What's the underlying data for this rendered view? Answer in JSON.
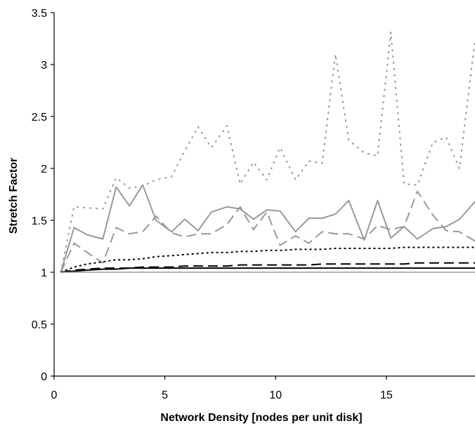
{
  "chart_data": {
    "type": "line",
    "title": "",
    "xlabel": "Network Density [nodes per unit disk]",
    "ylabel": "Stretch Factor",
    "xlim": [
      0,
      19
    ],
    "ylim": [
      0,
      3.5
    ],
    "x_ticks": [
      0,
      5,
      10,
      15
    ],
    "x_tick_labels": [
      "0",
      "5",
      "10",
      "15"
    ],
    "y_ticks": [
      0,
      0.5,
      1,
      1.5,
      2,
      2.5,
      3,
      3.5
    ],
    "y_tick_labels": [
      "0",
      "0.5",
      "1",
      "1.5",
      "2",
      "2.5",
      "3",
      "3.5"
    ],
    "grid": false,
    "legend": "none",
    "x": [
      0.3,
      0.9,
      1.5,
      2.2,
      2.8,
      3.4,
      4.0,
      4.6,
      5.3,
      5.9,
      6.5,
      7.1,
      7.8,
      8.4,
      9.0,
      9.6,
      10.2,
      10.9,
      11.5,
      12.1,
      12.7,
      13.3,
      14.0,
      14.6,
      15.2,
      15.8,
      16.4,
      17.1,
      17.7,
      18.3,
      19.0
    ],
    "series": [
      {
        "color": "#999999",
        "dash": "3,6",
        "width": 2,
        "values": [
          1.0,
          1.63,
          1.62,
          1.61,
          1.91,
          1.81,
          1.83,
          1.89,
          1.92,
          2.17,
          2.4,
          2.2,
          2.41,
          1.85,
          2.06,
          1.89,
          2.2,
          1.89,
          2.07,
          2.05,
          3.1,
          2.27,
          2.15,
          2.12,
          3.31,
          1.85,
          1.84,
          2.25,
          2.3,
          2.0,
          3.24
        ]
      },
      {
        "color": "#999999",
        "dash": "",
        "width": 2,
        "values": [
          1.0,
          1.43,
          1.36,
          1.32,
          1.82,
          1.64,
          1.84,
          1.5,
          1.39,
          1.51,
          1.4,
          1.58,
          1.63,
          1.61,
          1.51,
          1.6,
          1.59,
          1.39,
          1.52,
          1.52,
          1.56,
          1.69,
          1.31,
          1.69,
          1.33,
          1.44,
          1.32,
          1.42,
          1.44,
          1.51,
          1.68
        ]
      },
      {
        "color": "#999999",
        "dash": "14,7",
        "width": 2,
        "values": [
          1.0,
          1.28,
          1.19,
          1.09,
          1.43,
          1.37,
          1.39,
          1.54,
          1.38,
          1.34,
          1.37,
          1.37,
          1.46,
          1.63,
          1.41,
          1.58,
          1.26,
          1.35,
          1.28,
          1.39,
          1.37,
          1.37,
          1.32,
          1.45,
          1.41,
          1.44,
          1.78,
          1.55,
          1.4,
          1.39,
          1.3
        ]
      },
      {
        "color": "#000000",
        "dash": "3,4",
        "width": 2,
        "values": [
          1.0,
          1.05,
          1.08,
          1.1,
          1.12,
          1.12,
          1.13,
          1.15,
          1.16,
          1.17,
          1.18,
          1.19,
          1.19,
          1.2,
          1.2,
          1.21,
          1.21,
          1.22,
          1.22,
          1.22,
          1.23,
          1.23,
          1.23,
          1.23,
          1.23,
          1.24,
          1.24,
          1.24,
          1.24,
          1.24,
          1.24
        ]
      },
      {
        "color": "#000000",
        "dash": "14,7",
        "width": 2,
        "values": [
          1.0,
          1.02,
          1.03,
          1.04,
          1.04,
          1.04,
          1.05,
          1.05,
          1.05,
          1.06,
          1.06,
          1.06,
          1.06,
          1.07,
          1.07,
          1.07,
          1.07,
          1.07,
          1.07,
          1.08,
          1.08,
          1.08,
          1.08,
          1.08,
          1.08,
          1.08,
          1.09,
          1.09,
          1.09,
          1.09,
          1.09
        ]
      },
      {
        "color": "#000000",
        "dash": "",
        "width": 2,
        "values": [
          1.0,
          1.01,
          1.02,
          1.03,
          1.03,
          1.04,
          1.04,
          1.04,
          1.04,
          1.04,
          1.04,
          1.04,
          1.04,
          1.04,
          1.04,
          1.04,
          1.04,
          1.04,
          1.04,
          1.04,
          1.04,
          1.04,
          1.04,
          1.04,
          1.04,
          1.04,
          1.04,
          1.04,
          1.04,
          1.04,
          1.04
        ]
      },
      {
        "color": "#999999",
        "dash": "",
        "width": 1.5,
        "values": [
          1.0,
          1.0,
          1.0,
          1.0,
          1.0,
          1.0,
          1.0,
          1.0,
          1.0,
          1.0,
          1.0,
          1.0,
          1.0,
          1.0,
          1.0,
          1.0,
          1.0,
          1.0,
          1.0,
          1.0,
          1.0,
          1.0,
          1.0,
          1.0,
          1.0,
          1.0,
          1.0,
          1.0,
          1.0,
          1.0,
          1.0
        ]
      }
    ]
  }
}
